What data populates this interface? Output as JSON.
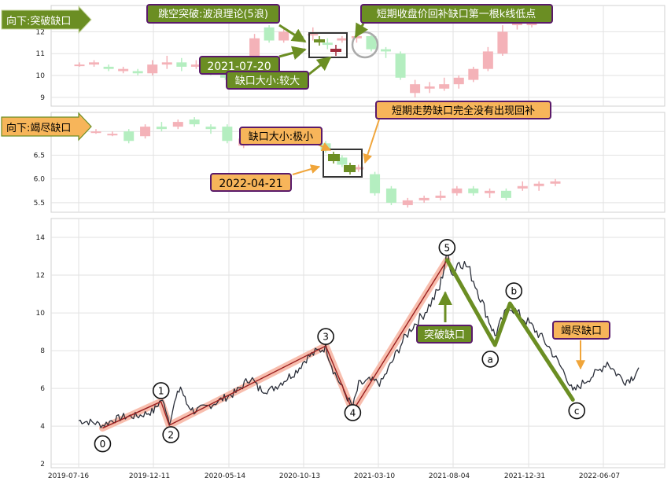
{
  "chart_data": [
    {
      "panel": "top",
      "type": "candlestick",
      "y_ticks": [
        9,
        10,
        11,
        12
      ],
      "ylim": [
        8.6,
        13.2
      ],
      "grid": true,
      "tag": "向下:突破缺口",
      "annotations": [
        {
          "id": "a1",
          "text": "跳空突破:波浪理论(5浪)"
        },
        {
          "id": "a2",
          "text": "短期收盘价回补缺口第一根k线低点"
        },
        {
          "id": "a3",
          "text": "2021-07-20"
        },
        {
          "id": "a4",
          "text": "缺口大小:较大"
        }
      ],
      "candles": [
        {
          "o": 10.5,
          "c": 10.5,
          "h": 10.6,
          "l": 10.4
        },
        {
          "o": 10.5,
          "c": 10.6,
          "h": 10.7,
          "l": 10.4
        },
        {
          "o": 10.4,
          "c": 10.3,
          "h": 10.5,
          "l": 10.2
        },
        {
          "o": 10.2,
          "c": 10.3,
          "h": 10.4,
          "l": 10.1
        },
        {
          "o": 10.2,
          "c": 10.1,
          "h": 10.3,
          "l": 10.0
        },
        {
          "o": 10.1,
          "c": 10.5,
          "h": 10.7,
          "l": 10.0
        },
        {
          "o": 10.5,
          "c": 10.6,
          "h": 10.9,
          "l": 10.3
        },
        {
          "o": 10.6,
          "c": 10.4,
          "h": 10.8,
          "l": 10.2
        },
        {
          "o": 10.4,
          "c": 10.5,
          "h": 10.7,
          "l": 10.3
        },
        {
          "o": 10.4,
          "c": 10.2,
          "h": 10.5,
          "l": 10.0
        },
        {
          "o": 10.2,
          "c": 9.9,
          "h": 10.3,
          "l": 9.8
        },
        {
          "o": 9.9,
          "c": 10.3,
          "h": 10.5,
          "l": 9.8
        },
        {
          "o": 10.9,
          "c": 11.7,
          "h": 11.9,
          "l": 10.8
        },
        {
          "o": 12.2,
          "c": 11.6,
          "h": 12.3,
          "l": 11.5
        },
        {
          "o": 11.6,
          "c": 12.0,
          "h": 12.2,
          "l": 11.5
        },
        {
          "o": 11.8,
          "c": 11.7,
          "h": 11.9,
          "l": 11.6
        },
        {
          "o": 11.9,
          "c": 11.9,
          "h": 12.2,
          "l": 11.6
        },
        {
          "o": 11.5,
          "c": 11.4,
          "h": 11.7,
          "l": 11.2
        },
        {
          "o": 11.6,
          "c": 11.7,
          "h": 11.8,
          "l": 11.5
        },
        {
          "o": 11.7,
          "c": 11.8,
          "h": 11.9,
          "l": 11.5
        },
        {
          "o": 11.8,
          "c": 11.2,
          "h": 11.9,
          "l": 11.1
        },
        {
          "o": 11.2,
          "c": 11.1,
          "h": 11.3,
          "l": 10.8
        },
        {
          "o": 11.0,
          "c": 9.9,
          "h": 11.1,
          "l": 9.8
        },
        {
          "o": 9.2,
          "c": 9.6,
          "h": 9.8,
          "l": 9.0
        },
        {
          "o": 9.4,
          "c": 9.5,
          "h": 9.7,
          "l": 9.2
        },
        {
          "o": 9.4,
          "c": 9.6,
          "h": 9.9,
          "l": 9.3
        },
        {
          "o": 9.6,
          "c": 9.9,
          "h": 10.0,
          "l": 9.4
        },
        {
          "o": 9.8,
          "c": 10.3,
          "h": 10.4,
          "l": 9.7
        },
        {
          "o": 10.3,
          "c": 11.1,
          "h": 11.3,
          "l": 10.2
        },
        {
          "o": 11.0,
          "c": 12.0,
          "h": 12.3,
          "l": 10.9
        },
        {
          "o": 12.3,
          "c": 12.4,
          "h": 12.6,
          "l": 12.1
        },
        {
          "o": 12.3,
          "c": 13.1,
          "h": 13.2,
          "l": 12.2
        }
      ]
    },
    {
      "panel": "middle",
      "type": "candlestick",
      "y_ticks": [
        5.5,
        6.0,
        6.5,
        7.0
      ],
      "ylim": [
        5.3,
        7.4
      ],
      "grid": true,
      "tag": "向下:竭尽缺口",
      "annotations": [
        {
          "id": "b1",
          "text": "缺口大小:极小"
        },
        {
          "id": "b2",
          "text": "短期走势缺口完全没有出现回补"
        },
        {
          "id": "b3",
          "text": "2022-04-21"
        }
      ],
      "candles": [
        {
          "o": 7.0,
          "c": 7.0,
          "h": 7.05,
          "l": 6.95
        },
        {
          "o": 6.95,
          "c": 6.95,
          "h": 7.0,
          "l": 6.9
        },
        {
          "o": 7.0,
          "c": 6.8,
          "h": 7.05,
          "l": 6.75
        },
        {
          "o": 6.9,
          "c": 7.1,
          "h": 7.15,
          "l": 6.85
        },
        {
          "o": 7.1,
          "c": 7.05,
          "h": 7.2,
          "l": 7.0
        },
        {
          "o": 7.1,
          "c": 7.2,
          "h": 7.25,
          "l": 7.05
        },
        {
          "o": 7.25,
          "c": 7.15,
          "h": 7.3,
          "l": 7.1
        },
        {
          "o": 7.1,
          "c": 7.05,
          "h": 7.15,
          "l": 6.95
        },
        {
          "o": 7.1,
          "c": 6.8,
          "h": 7.15,
          "l": 6.75
        },
        {
          "o": 6.7,
          "c": 6.85,
          "h": 6.9,
          "l": 6.65
        },
        {
          "o": 6.9,
          "c": 6.85,
          "h": 6.95,
          "l": 6.8
        },
        {
          "o": 6.8,
          "c": 6.95,
          "h": 7.0,
          "l": 6.75
        },
        {
          "o": 6.85,
          "c": 6.9,
          "h": 6.95,
          "l": 6.8
        },
        {
          "o": 6.9,
          "c": 6.85,
          "h": 6.95,
          "l": 6.8
        },
        {
          "o": 6.75,
          "c": 6.6,
          "h": 6.8,
          "l": 6.55
        },
        {
          "o": 6.45,
          "c": 6.3,
          "h": 6.5,
          "l": 6.25
        },
        {
          "o": 6.2,
          "c": 6.25,
          "h": 6.3,
          "l": 6.15
        },
        {
          "o": 6.1,
          "c": 5.7,
          "h": 6.15,
          "l": 5.65
        },
        {
          "o": 5.8,
          "c": 5.5,
          "h": 5.85,
          "l": 5.45
        },
        {
          "o": 5.45,
          "c": 5.55,
          "h": 5.6,
          "l": 5.4
        },
        {
          "o": 5.55,
          "c": 5.6,
          "h": 5.65,
          "l": 5.5
        },
        {
          "o": 5.6,
          "c": 5.65,
          "h": 5.75,
          "l": 5.55
        },
        {
          "o": 5.7,
          "c": 5.8,
          "h": 5.85,
          "l": 5.65
        },
        {
          "o": 5.8,
          "c": 5.7,
          "h": 5.85,
          "l": 5.65
        },
        {
          "o": 5.7,
          "c": 5.75,
          "h": 5.8,
          "l": 5.6
        },
        {
          "o": 5.75,
          "c": 5.6,
          "h": 5.8,
          "l": 5.55
        },
        {
          "o": 5.8,
          "c": 5.85,
          "h": 5.95,
          "l": 5.75
        },
        {
          "o": 5.85,
          "c": 5.9,
          "h": 5.95,
          "l": 5.75
        },
        {
          "o": 5.9,
          "c": 5.95,
          "h": 6.0,
          "l": 5.85
        }
      ]
    },
    {
      "panel": "bottom",
      "type": "line",
      "y_ticks": [
        2,
        4,
        6,
        8,
        10,
        12,
        14
      ],
      "ylim": [
        1.8,
        15.0
      ],
      "x_ticks": [
        "2019-07-16",
        "2019-12-11",
        "2020-05-14",
        "2020-10-13",
        "2021-03-10",
        "2021-08-04",
        "2021-12-31",
        "2022-06-07"
      ],
      "grid": true,
      "price_keypoints": [
        [
          0.0,
          4.3
        ],
        [
          1.0,
          4.2
        ],
        [
          1.6,
          4.05
        ],
        [
          2.2,
          4.3
        ],
        [
          3.0,
          4.5
        ],
        [
          4.0,
          4.55
        ],
        [
          5.0,
          4.8
        ],
        [
          5.5,
          5.4
        ],
        [
          5.8,
          5.0
        ],
        [
          6.05,
          4.2
        ],
        [
          6.4,
          5.2
        ],
        [
          6.8,
          6.1
        ],
        [
          7.2,
          5.2
        ],
        [
          7.7,
          4.8
        ],
        [
          8.5,
          5.0
        ],
        [
          9.5,
          5.4
        ],
        [
          10.5,
          5.8
        ],
        [
          11.5,
          6.6
        ],
        [
          12.0,
          6.0
        ],
        [
          12.8,
          5.9
        ],
        [
          13.5,
          6.3
        ],
        [
          14.5,
          6.9
        ],
        [
          15.2,
          7.6
        ],
        [
          15.8,
          7.9
        ],
        [
          16.5,
          8.2
        ],
        [
          17.0,
          7.0
        ],
        [
          17.6,
          6.0
        ],
        [
          18.3,
          5.0
        ],
        [
          18.7,
          6.2
        ],
        [
          19.4,
          6.4
        ],
        [
          20.2,
          6.3
        ],
        [
          20.8,
          7.2
        ],
        [
          21.5,
          8.3
        ],
        [
          22.2,
          9.2
        ],
        [
          22.9,
          9.8
        ],
        [
          23.5,
          10.5
        ],
        [
          24.1,
          11.3
        ],
        [
          24.6,
          13.2
        ],
        [
          25.0,
          12.0
        ],
        [
          25.4,
          12.8
        ],
        [
          26.0,
          12.4
        ],
        [
          26.6,
          11.3
        ],
        [
          27.3,
          9.8
        ],
        [
          27.8,
          8.8
        ],
        [
          28.2,
          9.5
        ],
        [
          28.8,
          10.4
        ],
        [
          29.4,
          9.9
        ],
        [
          30.0,
          9.5
        ],
        [
          30.7,
          8.9
        ],
        [
          31.4,
          8.2
        ],
        [
          32.0,
          7.4
        ],
        [
          32.6,
          6.6
        ],
        [
          33.0,
          5.8
        ],
        [
          33.4,
          6.1
        ],
        [
          34.0,
          6.5
        ],
        [
          34.7,
          6.9
        ],
        [
          35.3,
          7.4
        ],
        [
          35.9,
          6.8
        ],
        [
          36.5,
          6.4
        ],
        [
          37.0,
          6.6
        ],
        [
          37.4,
          7.1
        ]
      ],
      "wave_labels": [
        "0",
        "1",
        "2",
        "3",
        "4",
        "5",
        "a",
        "b",
        "c"
      ],
      "wave_points": [
        {
          "label": "0",
          "x": 1.6,
          "y": 3.9
        },
        {
          "label": "1",
          "x": 5.5,
          "y": 5.3
        },
        {
          "label": "2",
          "x": 6.05,
          "y": 4.05
        },
        {
          "label": "3",
          "x": 16.5,
          "y": 8.25
        },
        {
          "label": "4",
          "x": 18.3,
          "y": 4.8
        },
        {
          "label": "5",
          "x": 24.6,
          "y": 12.8
        },
        {
          "label": "a",
          "x": 27.8,
          "y": 8.3
        },
        {
          "label": "b",
          "x": 28.8,
          "y": 10.5
        },
        {
          "label": "c",
          "x": 33.0,
          "y": 5.4
        }
      ],
      "annotations": [
        {
          "id": "c1",
          "text": "突破缺口"
        },
        {
          "id": "c2",
          "text": "竭尽缺口"
        }
      ]
    }
  ],
  "colors": {
    "up": "#f4b2b8",
    "down": "#b4eec0",
    "gap_up": "#a02c3c",
    "gap_down": "#6b8e23",
    "green_box": "#6b8e23",
    "orange_box": "#f7b55a",
    "box_border": "#5a1a6a",
    "wave_line": "#6b8e23",
    "wave_glow": "#f7b3a0",
    "price_line": "#2b2f3a"
  }
}
